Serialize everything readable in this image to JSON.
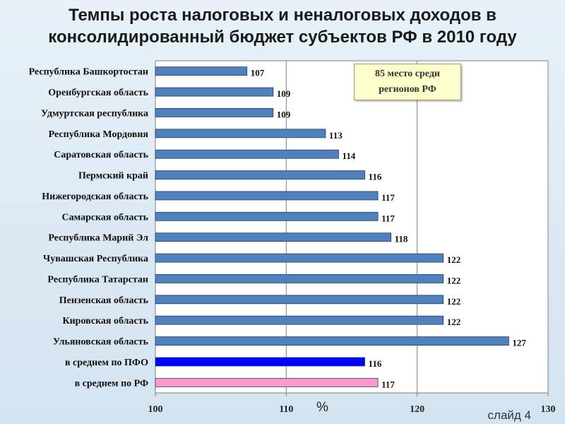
{
  "title": "Темпы роста налоговых и неналоговых доходов в консолидированный бюджет субъектов РФ в 2010 году",
  "callout_line1": "85 место среди",
  "callout_line2": "регионов РФ",
  "slide_label": "слайд 4",
  "chart_data": {
    "type": "bar",
    "orientation": "horizontal",
    "categories": [
      "Республика Башкортостан",
      "Оренбургская область",
      "Удмуртская республика",
      "Республика Мордовия",
      "Саратовская область",
      "Пермский край",
      "Нижегородская область",
      "Самарская область",
      "Республика Марий Эл",
      "Чувашская Республика",
      "Республика Татарстан",
      "Пензенская область",
      "Кировская область",
      "Ульяновская область",
      "в среднем по ПФО",
      "в среднем по РФ"
    ],
    "values": [
      107,
      109,
      109,
      113,
      114,
      116,
      117,
      117,
      118,
      122,
      122,
      122,
      122,
      127,
      116,
      117
    ],
    "bar_colors": [
      "#4f81bd",
      "#4f81bd",
      "#4f81bd",
      "#4f81bd",
      "#4f81bd",
      "#4f81bd",
      "#4f81bd",
      "#4f81bd",
      "#4f81bd",
      "#4f81bd",
      "#4f81bd",
      "#4f81bd",
      "#4f81bd",
      "#4f81bd",
      "#0000ff",
      "#ff99cc"
    ],
    "xlim": [
      100,
      130
    ],
    "x_ticks": [
      100,
      110,
      120,
      130
    ],
    "xlabel": "%",
    "grid": "vertical"
  }
}
